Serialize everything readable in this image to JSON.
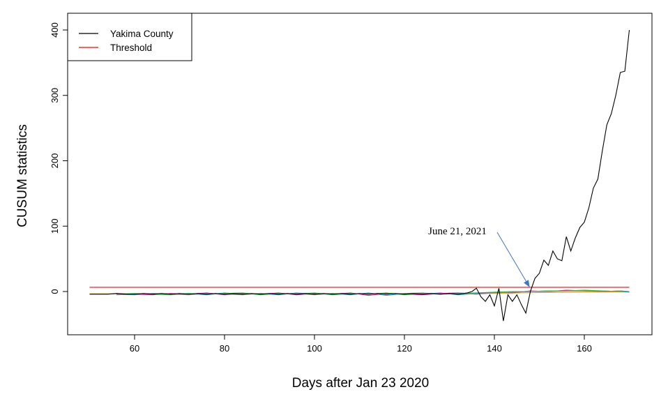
{
  "chart_data": {
    "type": "line",
    "xlabel": "Days after Jan 23 2020",
    "ylabel": "CUSUM statistics",
    "xlim": [
      45,
      175
    ],
    "ylim": [
      -60,
      400
    ],
    "x_ticks": [
      60,
      80,
      100,
      120,
      140,
      160
    ],
    "y_ticks": [
      0,
      100,
      200,
      300,
      400
    ],
    "legend_position": "top-left",
    "legend": [
      {
        "label": "Yakima County",
        "color": "#000000"
      },
      {
        "label": "Threshold",
        "color": "#ff0000"
      }
    ],
    "series": [
      {
        "name": "Yakima County",
        "color": "#000000",
        "x": [
          50,
          52,
          54,
          56,
          58,
          60,
          62,
          64,
          66,
          68,
          70,
          72,
          74,
          76,
          78,
          80,
          82,
          84,
          86,
          88,
          90,
          92,
          94,
          96,
          98,
          100,
          102,
          104,
          106,
          108,
          110,
          112,
          114,
          116,
          118,
          120,
          122,
          124,
          126,
          128,
          130,
          132,
          134,
          135,
          136,
          137,
          138,
          139,
          140,
          141,
          142,
          143,
          144,
          145,
          146,
          147,
          148,
          149,
          150,
          151,
          152,
          153,
          154,
          155,
          156,
          157,
          158,
          159,
          160,
          161,
          162,
          163,
          164,
          165,
          166,
          167,
          168,
          169,
          170
        ],
        "y": [
          -4,
          -4,
          -4,
          -3,
          -4,
          -4,
          -3,
          -4,
          -3,
          -4,
          -3,
          -4,
          -3,
          -4,
          -3,
          -4,
          -3,
          -4,
          -3,
          -4,
          -3,
          -4,
          -3,
          -4,
          -3,
          -4,
          -3,
          -4,
          -3,
          -4,
          -3,
          -4,
          -3,
          -4,
          -3,
          -4,
          -3,
          -4,
          -3,
          -4,
          -3,
          -4,
          -2,
          0,
          5,
          -8,
          -15,
          -5,
          -22,
          5,
          -45,
          -5,
          -15,
          -5,
          -20,
          -33,
          0,
          20,
          28,
          48,
          40,
          62,
          50,
          47,
          84,
          62,
          82,
          98,
          106,
          128,
          158,
          172,
          215,
          255,
          272,
          300,
          335,
          337,
          400
        ]
      },
      {
        "name": "Threshold",
        "color": "#ff0000",
        "x": [
          50,
          170
        ],
        "y": [
          6.5,
          6.5
        ]
      },
      {
        "color": "#e5a000",
        "x": [
          50,
          60,
          70,
          80,
          90,
          100,
          110,
          120,
          130,
          140,
          150,
          160,
          170
        ],
        "y": [
          -3.5,
          -3.5,
          -3.5,
          -3.4,
          -3.4,
          -3.3,
          -3.3,
          -3.2,
          -3.1,
          -2.8,
          -1.5,
          -0.8,
          -0.5
        ]
      },
      {
        "color": "#1f9bd1",
        "x": [
          56,
          60,
          64,
          68,
          72,
          76,
          80,
          84,
          88,
          92,
          96,
          100,
          104,
          108,
          112,
          116,
          120,
          124,
          128,
          132,
          136,
          140,
          144,
          148,
          152,
          156,
          160,
          164,
          168,
          170
        ],
        "y": [
          -4,
          -5,
          -3,
          -4,
          -3,
          -5,
          -2,
          -4,
          -3,
          -5,
          -2,
          -4,
          -3,
          -5,
          -2,
          -6,
          -3,
          -4,
          -2,
          -5,
          -3,
          -2,
          -1,
          0,
          1,
          1,
          1,
          1,
          0,
          -1
        ]
      },
      {
        "color": "#d6248c",
        "x": [
          56,
          60,
          64,
          68,
          72,
          76,
          80,
          84,
          88,
          92,
          96,
          100,
          104,
          108,
          112,
          116,
          120,
          124,
          128,
          132,
          136,
          140,
          144,
          148,
          152,
          156,
          160,
          164,
          168,
          170
        ],
        "y": [
          -3,
          -4,
          -5,
          -3,
          -4,
          -2,
          -5,
          -3,
          -4,
          -2,
          -5,
          -3,
          -4,
          -2,
          -6,
          -3,
          -4,
          -5,
          -3,
          -2,
          -4,
          -1,
          -2,
          1,
          0,
          2,
          1,
          0,
          1,
          0
        ]
      },
      {
        "color": "#2fb34a",
        "x": [
          56,
          60,
          64,
          68,
          72,
          76,
          80,
          84,
          88,
          92,
          96,
          100,
          104,
          108,
          112,
          116,
          120,
          124,
          128,
          132,
          136,
          140,
          144,
          148,
          152,
          156,
          160,
          164,
          168,
          170
        ],
        "y": [
          -4,
          -3,
          -4,
          -5,
          -3,
          -4,
          -3,
          -2,
          -5,
          -3,
          -4,
          -2,
          -5,
          -3,
          -4,
          -2,
          -5,
          -3,
          -4,
          -3,
          -2,
          -1,
          0,
          0,
          1,
          1,
          2,
          1,
          0,
          0
        ]
      },
      {
        "color": "#888888",
        "x": [
          56,
          60,
          64,
          68,
          72,
          76,
          80,
          84,
          88,
          92,
          96,
          100,
          104,
          108,
          112,
          116,
          120,
          124,
          128,
          132,
          136,
          140,
          144,
          148,
          152,
          156,
          160,
          164,
          168,
          170
        ],
        "y": [
          -5,
          -4,
          -3,
          -4,
          -5,
          -3,
          -4,
          -5,
          -3,
          -4,
          -3,
          -5,
          -3,
          -4,
          -3,
          -4,
          -3,
          -2,
          -4,
          -3,
          -4,
          -2,
          -1,
          0,
          0,
          1,
          1,
          0,
          1,
          0
        ]
      }
    ],
    "annotation": {
      "text": "June 21, 2021",
      "arrow_to_x": 148,
      "arrow_to_y": 6.5,
      "arrow_color": "#4472c4"
    }
  }
}
